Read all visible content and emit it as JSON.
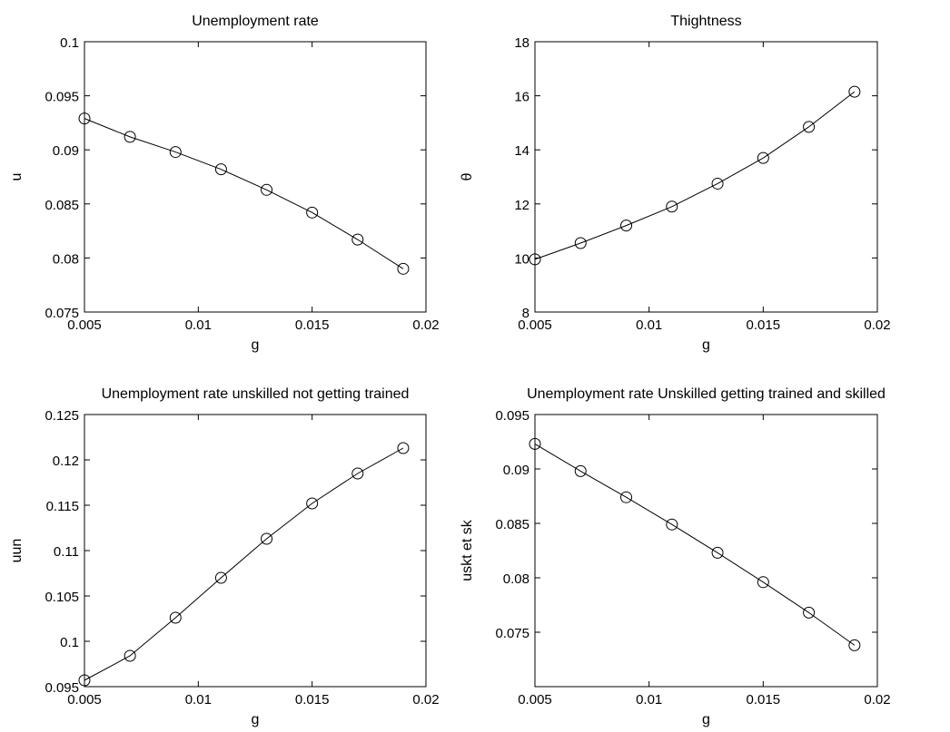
{
  "chart_data": [
    {
      "type": "line",
      "title": "Unemployment rate",
      "xlabel": "g",
      "ylabel": "u",
      "xlim": [
        0.005,
        0.02
      ],
      "ylim": [
        0.075,
        0.1
      ],
      "xticks": [
        "0.005",
        "0.01",
        "0.015",
        "0.02"
      ],
      "yticks": [
        "0.075",
        "0.08",
        "0.085",
        "0.09",
        "0.095",
        "0.1"
      ],
      "marker": "circle",
      "grid": false,
      "x": [
        0.005,
        0.007,
        0.009,
        0.011,
        0.013,
        0.015,
        0.017,
        0.019
      ],
      "y": [
        0.0929,
        0.0912,
        0.0898,
        0.0882,
        0.0863,
        0.0842,
        0.0817,
        0.079
      ]
    },
    {
      "type": "line",
      "title": "Thightness",
      "xlabel": "g",
      "ylabel": "θ",
      "xlim": [
        0.005,
        0.02
      ],
      "ylim": [
        8,
        18
      ],
      "xticks": [
        "0.005",
        "0.01",
        "0.015",
        "0.02"
      ],
      "yticks": [
        "8",
        "10",
        "12",
        "14",
        "16",
        "18"
      ],
      "marker": "circle",
      "grid": false,
      "x": [
        0.005,
        0.007,
        0.009,
        0.011,
        0.013,
        0.015,
        0.017,
        0.019
      ],
      "y": [
        9.95,
        10.55,
        11.2,
        11.9,
        12.75,
        13.7,
        14.85,
        16.15
      ]
    },
    {
      "type": "line",
      "title": "Unemployment rate unskilled not getting trained",
      "xlabel": "g",
      "ylabel": "uun",
      "xlim": [
        0.005,
        0.02
      ],
      "ylim": [
        0.095,
        0.125
      ],
      "xticks": [
        "0.005",
        "0.01",
        "0.015",
        "0.02"
      ],
      "yticks": [
        "0.095",
        "0.1",
        "0.105",
        "0.11",
        "0.115",
        "0.12",
        "0.125"
      ],
      "marker": "circle",
      "grid": false,
      "x": [
        0.005,
        0.007,
        0.009,
        0.011,
        0.013,
        0.015,
        0.017,
        0.019
      ],
      "y": [
        0.0957,
        0.0984,
        0.1026,
        0.107,
        0.1113,
        0.1152,
        0.1185,
        0.1213
      ]
    },
    {
      "type": "line",
      "title": "Unemployment rate Unskilled getting trained and skilled",
      "xlabel": "g",
      "ylabel": "uskt et sk",
      "xlim": [
        0.005,
        0.02
      ],
      "ylim": [
        0.07,
        0.095
      ],
      "xticks": [
        "0.005",
        "0.01",
        "0.015",
        "0.02"
      ],
      "yticks": [
        "0.075",
        "0.08",
        "0.085",
        "0.09",
        "0.095"
      ],
      "marker": "circle",
      "grid": false,
      "x": [
        0.005,
        0.007,
        0.009,
        0.011,
        0.013,
        0.015,
        0.017,
        0.019
      ],
      "y": [
        0.0923,
        0.0898,
        0.0874,
        0.0849,
        0.0823,
        0.0796,
        0.0768,
        0.0738
      ]
    }
  ]
}
